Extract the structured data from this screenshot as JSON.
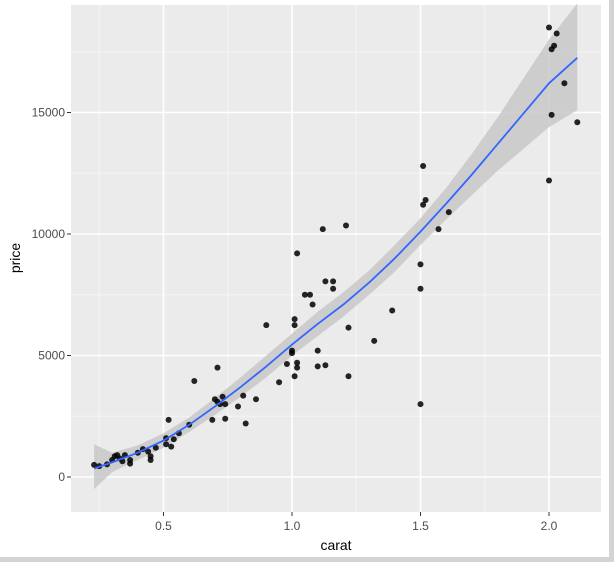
{
  "chart_data": {
    "type": "scatter",
    "title": "",
    "xlabel": "carat",
    "ylabel": "price",
    "xlim": [
      0.2,
      2.15
    ],
    "ylim": [
      -1450,
      19000
    ],
    "x_ticks": [
      0.5,
      1.0,
      1.5,
      2.0
    ],
    "x_tick_labels": [
      "0.5",
      "1.0",
      "1.5",
      "2.0"
    ],
    "y_ticks": [
      0,
      5000,
      10000,
      15000
    ],
    "y_tick_labels": [
      "0",
      "5000",
      "10000",
      "15000"
    ],
    "grid": true,
    "legend": "none",
    "points": [
      [
        0.23,
        500
      ],
      [
        0.25,
        450
      ],
      [
        0.28,
        520
      ],
      [
        0.3,
        700
      ],
      [
        0.31,
        850
      ],
      [
        0.32,
        900
      ],
      [
        0.33,
        760
      ],
      [
        0.34,
        650
      ],
      [
        0.35,
        900
      ],
      [
        0.37,
        550
      ],
      [
        0.37,
        700
      ],
      [
        0.4,
        1000
      ],
      [
        0.42,
        1150
      ],
      [
        0.44,
        1050
      ],
      [
        0.45,
        700
      ],
      [
        0.45,
        850
      ],
      [
        0.47,
        1200
      ],
      [
        0.51,
        1350
      ],
      [
        0.51,
        1600
      ],
      [
        0.52,
        2350
      ],
      [
        0.53,
        1250
      ],
      [
        0.54,
        1550
      ],
      [
        0.56,
        1800
      ],
      [
        0.6,
        2150
      ],
      [
        0.62,
        3950
      ],
      [
        0.69,
        2350
      ],
      [
        0.7,
        3200
      ],
      [
        0.71,
        3100
      ],
      [
        0.71,
        4500
      ],
      [
        0.72,
        3000
      ],
      [
        0.73,
        3300
      ],
      [
        0.74,
        2400
      ],
      [
        0.74,
        3000
      ],
      [
        0.79,
        2900
      ],
      [
        0.81,
        3350
      ],
      [
        0.82,
        2200
      ],
      [
        0.86,
        3200
      ],
      [
        0.9,
        6250
      ],
      [
        0.95,
        3900
      ],
      [
        0.98,
        4650
      ],
      [
        1.0,
        5100
      ],
      [
        1.0,
        5200
      ],
      [
        1.01,
        4150
      ],
      [
        1.01,
        6250
      ],
      [
        1.01,
        6500
      ],
      [
        1.02,
        4500
      ],
      [
        1.02,
        4700
      ],
      [
        1.02,
        9200
      ],
      [
        1.05,
        7500
      ],
      [
        1.07,
        7500
      ],
      [
        1.08,
        7100
      ],
      [
        1.1,
        4550
      ],
      [
        1.1,
        5200
      ],
      [
        1.12,
        10200
      ],
      [
        1.13,
        4600
      ],
      [
        1.13,
        8050
      ],
      [
        1.16,
        7750
      ],
      [
        1.16,
        8050
      ],
      [
        1.21,
        10350
      ],
      [
        1.22,
        4150
      ],
      [
        1.22,
        6150
      ],
      [
        1.32,
        5600
      ],
      [
        1.39,
        6850
      ],
      [
        1.5,
        3000
      ],
      [
        1.5,
        7750
      ],
      [
        1.5,
        8750
      ],
      [
        1.51,
        11200
      ],
      [
        1.51,
        12800
      ],
      [
        1.52,
        11400
      ],
      [
        1.57,
        10200
      ],
      [
        1.61,
        10900
      ],
      [
        2.0,
        12200
      ],
      [
        2.0,
        18500
      ],
      [
        2.01,
        14900
      ],
      [
        2.01,
        17600
      ],
      [
        2.02,
        17750
      ],
      [
        2.03,
        18250
      ],
      [
        2.06,
        16200
      ],
      [
        2.11,
        14600
      ]
    ],
    "smooth": {
      "method": "loess",
      "color": "#3366ff",
      "band_color": "#c8c8c8",
      "x": [
        0.23,
        0.3,
        0.4,
        0.5,
        0.6,
        0.7,
        0.8,
        0.9,
        1.0,
        1.1,
        1.2,
        1.3,
        1.4,
        1.5,
        1.6,
        1.7,
        1.8,
        1.9,
        2.0,
        2.11
      ],
      "y": [
        350,
        600,
        1000,
        1500,
        2150,
        2900,
        3700,
        4550,
        5450,
        6300,
        7100,
        8000,
        9000,
        10100,
        11250,
        12450,
        13700,
        14950,
        16200,
        17250
      ],
      "lower": [
        -500,
        200,
        700,
        1200,
        1850,
        2550,
        3300,
        4100,
        5000,
        5800,
        6600,
        7500,
        8450,
        9550,
        10600,
        11600,
        12600,
        13500,
        14400,
        15100
      ],
      "upper": [
        1350,
        1000,
        1300,
        1800,
        2450,
        3250,
        4100,
        5000,
        5900,
        6800,
        7600,
        8500,
        9550,
        10650,
        11900,
        13300,
        14800,
        16400,
        18000,
        19500
      ]
    }
  },
  "axes": {
    "x_title": "carat",
    "y_title": "price"
  },
  "colors": {
    "panel_bg": "#ebebeb",
    "grid": "#ffffff",
    "point": "#000000",
    "smooth_line": "#3366ff",
    "smooth_band": "#c8c8c8"
  }
}
